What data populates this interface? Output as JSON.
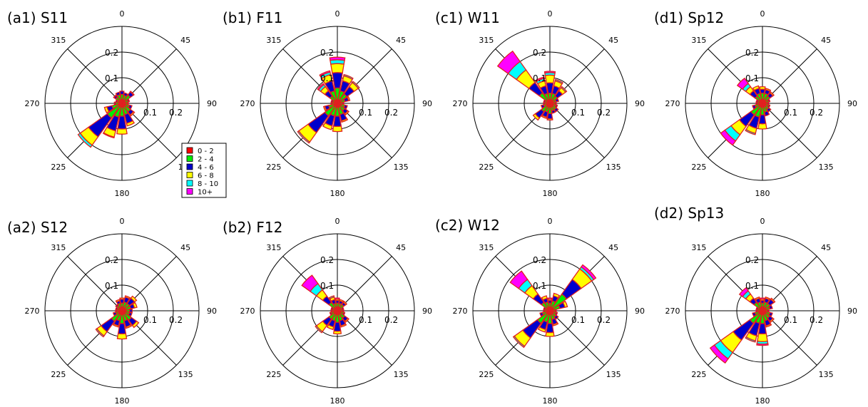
{
  "chart_data": {
    "type": "windrose",
    "directions": [
      0,
      22.5,
      45,
      67.5,
      90,
      112.5,
      135,
      157.5,
      180,
      202.5,
      225,
      247.5,
      270,
      292.5,
      315,
      337.5
    ],
    "direction_labels": [
      "0",
      "45",
      "90",
      "135",
      "180",
      "225",
      "270",
      "315"
    ],
    "ring_labels": [
      "0.1",
      "0.2"
    ],
    "radial_max": 0.3,
    "legend": {
      "bins": [
        "0 - 2",
        "2 - 4",
        "4 - 6",
        "6 - 8",
        "8 - 10",
        "10+"
      ],
      "colors": [
        "#ff0000",
        "#00ee00",
        "#0000cc",
        "#ffff00",
        "#00ffff",
        "#ff00ff"
      ],
      "outline": "#e02020"
    },
    "panels": [
      {
        "id": "a1",
        "title": "(a1) S11",
        "show_legend": true,
        "cumulative": [
          [
            0.015,
            0.035,
            0.048,
            0.048,
            0.048,
            0.048
          ],
          [
            0.015,
            0.032,
            0.042,
            0.042,
            0.042,
            0.042
          ],
          [
            0.015,
            0.04,
            0.055,
            0.058,
            0.058,
            0.058
          ],
          [
            0.012,
            0.025,
            0.03,
            0.03,
            0.03,
            0.03
          ],
          [
            0.012,
            0.022,
            0.025,
            0.025,
            0.025,
            0.025
          ],
          [
            0.015,
            0.03,
            0.04,
            0.04,
            0.04,
            0.04
          ],
          [
            0.015,
            0.04,
            0.055,
            0.06,
            0.06,
            0.06
          ],
          [
            0.015,
            0.045,
            0.08,
            0.09,
            0.09,
            0.09
          ],
          [
            0.015,
            0.05,
            0.1,
            0.12,
            0.12,
            0.12
          ],
          [
            0.015,
            0.055,
            0.11,
            0.135,
            0.138,
            0.138
          ],
          [
            0.015,
            0.07,
            0.16,
            0.2,
            0.21,
            0.21
          ],
          [
            0.015,
            0.04,
            0.06,
            0.07,
            0.07,
            0.07
          ],
          [
            0.012,
            0.025,
            0.03,
            0.03,
            0.03,
            0.03
          ],
          [
            0.012,
            0.02,
            0.025,
            0.025,
            0.025,
            0.025
          ],
          [
            0.015,
            0.03,
            0.038,
            0.04,
            0.04,
            0.04
          ],
          [
            0.015,
            0.035,
            0.045,
            0.045,
            0.045,
            0.045
          ]
        ]
      },
      {
        "id": "b1",
        "title": "(b1) F11",
        "show_legend": false,
        "cumulative": [
          [
            0.015,
            0.06,
            0.12,
            0.155,
            0.17,
            0.18
          ],
          [
            0.015,
            0.05,
            0.09,
            0.11,
            0.115,
            0.115
          ],
          [
            0.015,
            0.045,
            0.08,
            0.1,
            0.105,
            0.105
          ],
          [
            0.015,
            0.03,
            0.045,
            0.05,
            0.05,
            0.05
          ],
          [
            0.012,
            0.02,
            0.025,
            0.025,
            0.025,
            0.025
          ],
          [
            0.015,
            0.03,
            0.04,
            0.04,
            0.04,
            0.04
          ],
          [
            0.015,
            0.035,
            0.05,
            0.055,
            0.055,
            0.055
          ],
          [
            0.015,
            0.045,
            0.07,
            0.075,
            0.075,
            0.075
          ],
          [
            0.015,
            0.05,
            0.09,
            0.11,
            0.11,
            0.11
          ],
          [
            0.015,
            0.05,
            0.09,
            0.105,
            0.105,
            0.105
          ],
          [
            0.015,
            0.06,
            0.14,
            0.185,
            0.19,
            0.19
          ],
          [
            0.015,
            0.035,
            0.05,
            0.055,
            0.055,
            0.055
          ],
          [
            0.012,
            0.02,
            0.025,
            0.025,
            0.025,
            0.025
          ],
          [
            0.012,
            0.02,
            0.025,
            0.025,
            0.025,
            0.025
          ],
          [
            0.015,
            0.035,
            0.06,
            0.08,
            0.09,
            0.095
          ],
          [
            0.015,
            0.05,
            0.09,
            0.115,
            0.125,
            0.13
          ]
        ]
      },
      {
        "id": "c1",
        "title": "(c1) W11",
        "show_legend": false,
        "cumulative": [
          [
            0.015,
            0.04,
            0.08,
            0.11,
            0.12,
            0.125
          ],
          [
            0.015,
            0.04,
            0.07,
            0.09,
            0.095,
            0.095
          ],
          [
            0.015,
            0.035,
            0.06,
            0.075,
            0.08,
            0.08
          ],
          [
            0.015,
            0.025,
            0.035,
            0.035,
            0.035,
            0.035
          ],
          [
            0.012,
            0.02,
            0.025,
            0.025,
            0.025,
            0.025
          ],
          [
            0.015,
            0.025,
            0.03,
            0.03,
            0.03,
            0.03
          ],
          [
            0.015,
            0.03,
            0.04,
            0.04,
            0.04,
            0.04
          ],
          [
            0.015,
            0.03,
            0.04,
            0.04,
            0.04,
            0.04
          ],
          [
            0.015,
            0.04,
            0.06,
            0.065,
            0.065,
            0.065
          ],
          [
            0.015,
            0.035,
            0.055,
            0.06,
            0.06,
            0.06
          ],
          [
            0.015,
            0.04,
            0.07,
            0.08,
            0.08,
            0.08
          ],
          [
            0.015,
            0.025,
            0.035,
            0.035,
            0.035,
            0.035
          ],
          [
            0.012,
            0.02,
            0.025,
            0.025,
            0.025,
            0.025
          ],
          [
            0.012,
            0.02,
            0.025,
            0.025,
            0.025,
            0.025
          ],
          [
            0.015,
            0.05,
            0.1,
            0.16,
            0.2,
            0.25
          ],
          [
            0.015,
            0.04,
            0.07,
            0.09,
            0.1,
            0.105
          ]
        ]
      },
      {
        "id": "d1",
        "title": "(d1) Sp12",
        "show_legend": false,
        "cumulative": [
          [
            0.015,
            0.04,
            0.055,
            0.065,
            0.065,
            0.065
          ],
          [
            0.015,
            0.04,
            0.055,
            0.06,
            0.06,
            0.06
          ],
          [
            0.015,
            0.035,
            0.05,
            0.055,
            0.055,
            0.055
          ],
          [
            0.015,
            0.025,
            0.03,
            0.03,
            0.03,
            0.03
          ],
          [
            0.012,
            0.02,
            0.025,
            0.025,
            0.025,
            0.025
          ],
          [
            0.015,
            0.025,
            0.03,
            0.03,
            0.03,
            0.03
          ],
          [
            0.015,
            0.03,
            0.04,
            0.04,
            0.04,
            0.04
          ],
          [
            0.015,
            0.035,
            0.05,
            0.05,
            0.05,
            0.05
          ],
          [
            0.015,
            0.045,
            0.08,
            0.1,
            0.1,
            0.1
          ],
          [
            0.015,
            0.055,
            0.1,
            0.12,
            0.125,
            0.125
          ],
          [
            0.015,
            0.055,
            0.11,
            0.15,
            0.18,
            0.2
          ],
          [
            0.015,
            0.03,
            0.04,
            0.04,
            0.04,
            0.04
          ],
          [
            0.012,
            0.02,
            0.025,
            0.025,
            0.025,
            0.025
          ],
          [
            0.012,
            0.02,
            0.025,
            0.025,
            0.025,
            0.025
          ],
          [
            0.015,
            0.035,
            0.06,
            0.08,
            0.095,
            0.12
          ],
          [
            0.015,
            0.04,
            0.06,
            0.07,
            0.07,
            0.07
          ]
        ]
      },
      {
        "id": "a2",
        "title": "(a2) S12",
        "show_legend": false,
        "cumulative": [
          [
            0.015,
            0.03,
            0.045,
            0.05,
            0.05,
            0.05
          ],
          [
            0.015,
            0.035,
            0.055,
            0.06,
            0.06,
            0.06
          ],
          [
            0.015,
            0.035,
            0.06,
            0.07,
            0.07,
            0.07
          ],
          [
            0.015,
            0.035,
            0.05,
            0.06,
            0.06,
            0.06
          ],
          [
            0.015,
            0.03,
            0.04,
            0.04,
            0.04,
            0.04
          ],
          [
            0.015,
            0.03,
            0.04,
            0.04,
            0.04,
            0.04
          ],
          [
            0.015,
            0.045,
            0.07,
            0.08,
            0.08,
            0.08
          ],
          [
            0.015,
            0.04,
            0.065,
            0.07,
            0.07,
            0.07
          ],
          [
            0.015,
            0.05,
            0.09,
            0.11,
            0.11,
            0.11
          ],
          [
            0.015,
            0.04,
            0.06,
            0.065,
            0.065,
            0.065
          ],
          [
            0.015,
            0.05,
            0.1,
            0.12,
            0.125,
            0.125
          ],
          [
            0.015,
            0.025,
            0.035,
            0.035,
            0.035,
            0.035
          ],
          [
            0.012,
            0.02,
            0.025,
            0.025,
            0.025,
            0.025
          ],
          [
            0.012,
            0.02,
            0.025,
            0.025,
            0.025,
            0.025
          ],
          [
            0.015,
            0.025,
            0.03,
            0.03,
            0.03,
            0.03
          ],
          [
            0.015,
            0.03,
            0.04,
            0.045,
            0.045,
            0.045
          ]
        ]
      },
      {
        "id": "b2",
        "title": "(b2) F12",
        "show_legend": false,
        "cumulative": [
          [
            0.015,
            0.03,
            0.04,
            0.045,
            0.045,
            0.05
          ],
          [
            0.015,
            0.03,
            0.04,
            0.045,
            0.045,
            0.045
          ],
          [
            0.015,
            0.03,
            0.04,
            0.045,
            0.045,
            0.045
          ],
          [
            0.012,
            0.02,
            0.025,
            0.025,
            0.025,
            0.025
          ],
          [
            0.012,
            0.02,
            0.025,
            0.025,
            0.025,
            0.025
          ],
          [
            0.015,
            0.025,
            0.03,
            0.03,
            0.03,
            0.03
          ],
          [
            0.015,
            0.035,
            0.05,
            0.055,
            0.055,
            0.055
          ],
          [
            0.015,
            0.04,
            0.06,
            0.065,
            0.065,
            0.065
          ],
          [
            0.015,
            0.045,
            0.08,
            0.09,
            0.09,
            0.09
          ],
          [
            0.015,
            0.04,
            0.065,
            0.075,
            0.075,
            0.075
          ],
          [
            0.015,
            0.04,
            0.07,
            0.1,
            0.105,
            0.105
          ],
          [
            0.015,
            0.025,
            0.03,
            0.03,
            0.03,
            0.03
          ],
          [
            0.012,
            0.02,
            0.025,
            0.025,
            0.025,
            0.025
          ],
          [
            0.012,
            0.02,
            0.025,
            0.025,
            0.025,
            0.025
          ],
          [
            0.015,
            0.04,
            0.07,
            0.1,
            0.13,
            0.17
          ],
          [
            0.015,
            0.03,
            0.045,
            0.055,
            0.06,
            0.06
          ]
        ]
      },
      {
        "id": "c2",
        "title": "(c2) W12",
        "show_legend": false,
        "cumulative": [
          [
            0.015,
            0.03,
            0.04,
            0.045,
            0.045,
            0.05
          ],
          [
            0.015,
            0.04,
            0.06,
            0.07,
            0.07,
            0.07
          ],
          [
            0.015,
            0.08,
            0.15,
            0.2,
            0.21,
            0.22
          ],
          [
            0.015,
            0.04,
            0.06,
            0.07,
            0.07,
            0.07
          ],
          [
            0.012,
            0.02,
            0.025,
            0.025,
            0.025,
            0.025
          ],
          [
            0.015,
            0.025,
            0.03,
            0.03,
            0.03,
            0.03
          ],
          [
            0.015,
            0.03,
            0.04,
            0.04,
            0.04,
            0.04
          ],
          [
            0.015,
            0.035,
            0.055,
            0.06,
            0.06,
            0.06
          ],
          [
            0.015,
            0.05,
            0.085,
            0.1,
            0.1,
            0.1
          ],
          [
            0.015,
            0.045,
            0.075,
            0.085,
            0.085,
            0.085
          ],
          [
            0.015,
            0.06,
            0.13,
            0.17,
            0.175,
            0.175
          ],
          [
            0.015,
            0.03,
            0.04,
            0.04,
            0.04,
            0.04
          ],
          [
            0.012,
            0.02,
            0.025,
            0.025,
            0.025,
            0.025
          ],
          [
            0.012,
            0.02,
            0.025,
            0.025,
            0.025,
            0.025
          ],
          [
            0.015,
            0.04,
            0.08,
            0.12,
            0.15,
            0.19
          ],
          [
            0.015,
            0.035,
            0.05,
            0.06,
            0.06,
            0.06
          ]
        ]
      },
      {
        "id": "d2",
        "title": "(d2) Sp13",
        "show_legend": false,
        "cumulative": [
          [
            0.015,
            0.03,
            0.04,
            0.045,
            0.045,
            0.05
          ],
          [
            0.015,
            0.035,
            0.05,
            0.055,
            0.055,
            0.055
          ],
          [
            0.015,
            0.035,
            0.055,
            0.06,
            0.06,
            0.06
          ],
          [
            0.015,
            0.03,
            0.04,
            0.04,
            0.04,
            0.04
          ],
          [
            0.012,
            0.02,
            0.025,
            0.025,
            0.025,
            0.025
          ],
          [
            0.015,
            0.03,
            0.04,
            0.04,
            0.04,
            0.04
          ],
          [
            0.015,
            0.035,
            0.05,
            0.055,
            0.055,
            0.055
          ],
          [
            0.015,
            0.04,
            0.06,
            0.065,
            0.065,
            0.065
          ],
          [
            0.015,
            0.05,
            0.09,
            0.12,
            0.13,
            0.135
          ],
          [
            0.015,
            0.05,
            0.1,
            0.12,
            0.125,
            0.125
          ],
          [
            0.015,
            0.06,
            0.14,
            0.2,
            0.23,
            0.25
          ],
          [
            0.015,
            0.03,
            0.04,
            0.04,
            0.04,
            0.04
          ],
          [
            0.012,
            0.02,
            0.025,
            0.025,
            0.025,
            0.025
          ],
          [
            0.012,
            0.02,
            0.025,
            0.025,
            0.025,
            0.025
          ],
          [
            0.015,
            0.04,
            0.06,
            0.08,
            0.095,
            0.11
          ],
          [
            0.015,
            0.035,
            0.05,
            0.055,
            0.055,
            0.055
          ]
        ]
      }
    ]
  }
}
